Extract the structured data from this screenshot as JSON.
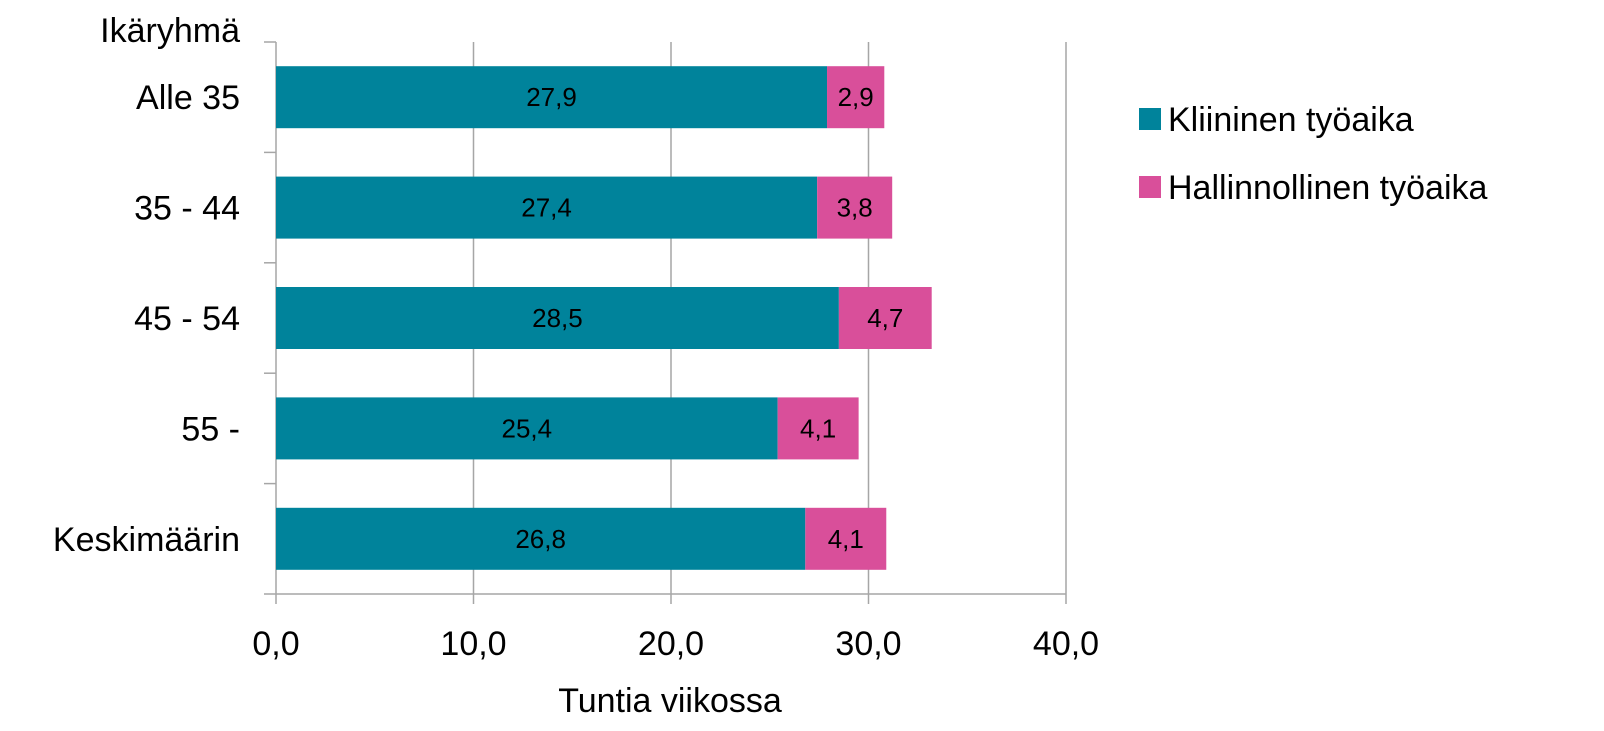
{
  "chart_data": {
    "type": "bar",
    "orientation": "horizontal",
    "stacked": true,
    "group_title": "Ikäryhmä",
    "categories": [
      "Alle 35",
      "35 - 44",
      "45 - 54",
      "55 -",
      "Keskimäärin"
    ],
    "series": [
      {
        "name": "Kliininen työaika",
        "color": "#00839b",
        "values": [
          27.9,
          27.4,
          28.5,
          25.4,
          26.8
        ],
        "labels": [
          "27,9",
          "27,4",
          "28,5",
          "25,4",
          "26,8"
        ]
      },
      {
        "name": "Hallinnollinen työaika",
        "color": "#d94f9a",
        "values": [
          2.9,
          3.8,
          4.7,
          4.1,
          4.1
        ],
        "labels": [
          "2,9",
          "3,8",
          "4,7",
          "4,1",
          "4,1"
        ]
      }
    ],
    "xlabel": "Tuntia viikossa",
    "xlim": [
      0,
      40
    ],
    "xticks": [
      0,
      10,
      20,
      30,
      40
    ],
    "xtick_labels": [
      "0,0",
      "10,0",
      "20,0",
      "30,0",
      "40,0"
    ],
    "grid": true,
    "legend_position": "right"
  }
}
